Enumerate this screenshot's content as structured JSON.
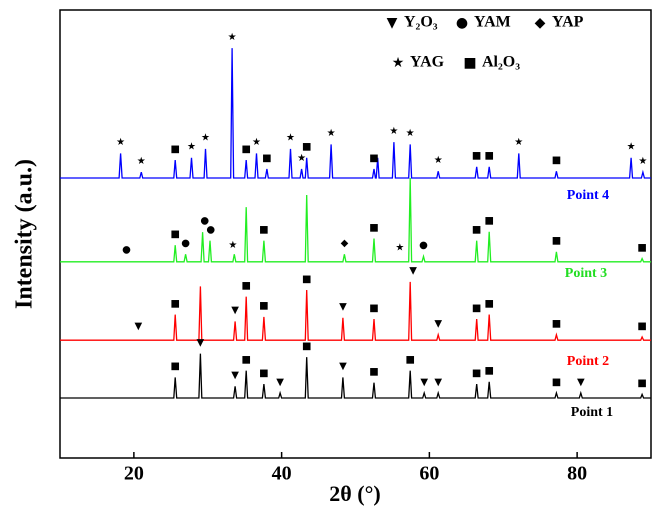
{
  "chart_data": {
    "type": "line",
    "xlabel": "2θ (°)",
    "ylabel": "Intensity (a.u.)",
    "xlim": [
      10,
      90
    ],
    "xticks": [
      20,
      40,
      60,
      80
    ],
    "ylim": [
      0,
      100
    ],
    "series": [
      {
        "name": "Point 1",
        "color": "#000000",
        "x": [
          10,
          25.4,
          25.6,
          25.8,
          28.8,
          29.0,
          29.2,
          33.5,
          33.7,
          33.9,
          35.0,
          35.2,
          35.4,
          37.4,
          37.6,
          37.8,
          39.6,
          39.8,
          40.0,
          43.2,
          43.4,
          43.6,
          48.1,
          48.3,
          48.5,
          52.3,
          52.5,
          52.7,
          57.2,
          57.4,
          57.6,
          59.1,
          59.3,
          59.5,
          61.0,
          61.2,
          61.4,
          66.2,
          66.4,
          66.6,
          67.9,
          68.1,
          68.3,
          77.0,
          77.2,
          77.4,
          80.3,
          80.5,
          80.7,
          88.6,
          88.8,
          89.0,
          90
        ],
        "values": [
          13.4,
          13.4,
          18,
          13.4,
          13.4,
          23.3,
          13.4,
          13.4,
          16,
          13.4,
          13.4,
          19.5,
          13.4,
          13.4,
          16.5,
          13.4,
          13.4,
          14.5,
          13.4,
          13.4,
          22.5,
          13.4,
          13.4,
          18,
          13.4,
          13.4,
          16.8,
          13.4,
          13.4,
          19.5,
          13.4,
          13.4,
          14.5,
          13.4,
          13.4,
          14.5,
          13.4,
          13.4,
          16.5,
          13.4,
          13.4,
          17,
          13.4,
          13.4,
          14.5,
          13.4,
          13.4,
          14.5,
          13.4,
          13.4,
          14.2,
          13.4,
          13.4
        ]
      },
      {
        "name": "Point 2",
        "color": "#ff0000",
        "x": [
          10,
          25.4,
          25.6,
          25.8,
          28.8,
          29.0,
          29.2,
          33.5,
          33.7,
          33.9,
          35.0,
          35.2,
          35.4,
          37.4,
          37.6,
          37.8,
          43.2,
          43.4,
          43.6,
          48.1,
          48.3,
          48.5,
          52.3,
          52.5,
          52.7,
          57.2,
          57.4,
          57.6,
          61.0,
          61.2,
          61.4,
          66.2,
          66.4,
          66.6,
          67.9,
          68.1,
          68.3,
          77.0,
          77.2,
          77.4,
          88.6,
          88.8,
          89.0,
          90
        ],
        "values": [
          26.3,
          26.3,
          32,
          26.3,
          26.3,
          38.3,
          26.3,
          26.3,
          30.5,
          26.3,
          26.3,
          36,
          26.3,
          26.3,
          31.5,
          26.3,
          26.3,
          37.5,
          26.3,
          26.3,
          31.3,
          26.3,
          26.3,
          31,
          26.3,
          26.3,
          39.3,
          26.3,
          26.3,
          27.5,
          26.3,
          26.3,
          31,
          26.3,
          26.3,
          32,
          26.3,
          26.3,
          27.5,
          26.3,
          26.3,
          27,
          26.3,
          26.3
        ]
      },
      {
        "name": "Point 3",
        "color": "#22ee22",
        "x": [
          10,
          25.4,
          25.6,
          25.8,
          26.8,
          27.0,
          27.2,
          29.1,
          29.3,
          29.5,
          30.1,
          30.3,
          30.5,
          33.4,
          33.6,
          33.8,
          35.0,
          35.2,
          35.4,
          37.4,
          37.6,
          37.8,
          43.2,
          43.4,
          43.6,
          48.3,
          48.5,
          48.7,
          52.3,
          52.5,
          52.7,
          57.2,
          57.4,
          57.6,
          59.0,
          59.2,
          59.4,
          66.2,
          66.4,
          66.6,
          67.9,
          68.1,
          68.3,
          77.0,
          77.2,
          77.4,
          88.6,
          88.8,
          89.0,
          90
        ],
        "values": [
          43.8,
          43.8,
          47.5,
          43.8,
          43.8,
          45.5,
          43.8,
          43.8,
          50.4,
          43.8,
          43.8,
          48.5,
          43.8,
          43.8,
          45.5,
          43.8,
          43.8,
          56,
          43.8,
          43.8,
          48.5,
          43.8,
          43.8,
          58.7,
          43.8,
          43.8,
          45.5,
          43.8,
          43.8,
          49,
          43.8,
          43.8,
          62.5,
          43.8,
          43.8,
          45,
          43.8,
          43.8,
          48.5,
          43.8,
          43.8,
          50.5,
          43.8,
          43.8,
          46,
          43.8,
          43.8,
          44.5,
          43.8,
          43.8
        ]
      },
      {
        "name": "Point 4",
        "color": "#0000ff",
        "x": [
          10,
          18.0,
          18.2,
          18.4,
          20.8,
          21.0,
          21.2,
          25.4,
          25.6,
          25.8,
          27.6,
          27.8,
          28.0,
          29.5,
          29.7,
          29.9,
          33.1,
          33.3,
          33.5,
          35.0,
          35.2,
          35.4,
          36.4,
          36.6,
          36.8,
          37.8,
          38.0,
          38.2,
          41.0,
          41.2,
          41.4,
          42.5,
          42.7,
          42.9,
          43.2,
          43.4,
          43.6,
          46.5,
          46.7,
          46.9,
          52.3,
          52.5,
          52.7,
          52.8,
          53.0,
          53.2,
          55.0,
          55.2,
          55.4,
          57.2,
          57.4,
          57.6,
          61.0,
          61.2,
          61.4,
          66.2,
          66.4,
          66.6,
          67.9,
          68.1,
          68.3,
          71.9,
          72.1,
          72.3,
          77.0,
          77.2,
          77.4,
          87.1,
          87.3,
          87.5,
          88.7,
          88.9,
          89.1,
          90
        ],
        "values": [
          62.5,
          62.5,
          68,
          62.5,
          62.5,
          63.8,
          62.5,
          62.5,
          66.5,
          62.5,
          62.5,
          67,
          62.5,
          62.5,
          69,
          62.5,
          62.5,
          91.5,
          62.5,
          62.5,
          66.5,
          62.5,
          62.5,
          68,
          62.5,
          62.5,
          64.5,
          62.5,
          62.5,
          69,
          62.5,
          62.5,
          64.5,
          62.5,
          62.5,
          67,
          62.5,
          62.5,
          70,
          62.5,
          62.5,
          64.5,
          62.5,
          62.5,
          67,
          62.5,
          62.5,
          70.5,
          62.5,
          62.5,
          70,
          62.5,
          62.5,
          64,
          62.5,
          62.5,
          65,
          62.5,
          62.5,
          65,
          62.5,
          62.5,
          68,
          62.5,
          62.5,
          64,
          62.5,
          62.5,
          67,
          62.5,
          62.5,
          63.8,
          62.5,
          62.5
        ]
      }
    ],
    "phase_legend": [
      {
        "symbol": "▼",
        "label": "Y₂O₃"
      },
      {
        "symbol": "●",
        "label": "YAM"
      },
      {
        "symbol": "◆",
        "label": "YAP"
      },
      {
        "symbol": "★",
        "label": "YAG"
      },
      {
        "symbol": "■",
        "label": "Al₂O₃"
      }
    ],
    "annotations": [
      {
        "text": "■",
        "x": 25.6,
        "y": 20.5
      },
      {
        "text": "▼",
        "x": 29,
        "y": 25.8
      },
      {
        "text": "▼",
        "x": 33.7,
        "y": 18.5
      },
      {
        "text": "■",
        "x": 35.2,
        "y": 22
      },
      {
        "text": "■",
        "x": 37.6,
        "y": 19
      },
      {
        "text": "▼",
        "x": 39.8,
        "y": 17
      },
      {
        "text": "■",
        "x": 43.4,
        "y": 25
      },
      {
        "text": "▼",
        "x": 48.3,
        "y": 20.5
      },
      {
        "text": "■",
        "x": 52.5,
        "y": 19.3
      },
      {
        "text": "■",
        "x": 57.4,
        "y": 22
      },
      {
        "text": "▼",
        "x": 59.3,
        "y": 17
      },
      {
        "text": "▼",
        "x": 61.2,
        "y": 17
      },
      {
        "text": "■",
        "x": 66.4,
        "y": 19
      },
      {
        "text": "■",
        "x": 68.1,
        "y": 19.5
      },
      {
        "text": "■",
        "x": 77.2,
        "y": 17
      },
      {
        "text": "▼",
        "x": 80.5,
        "y": 17
      },
      {
        "text": "■",
        "x": 88.8,
        "y": 16.7
      },
      {
        "text": "▼",
        "x": 20.6,
        "y": 29.5
      },
      {
        "text": "■",
        "x": 25.6,
        "y": 34.5
      },
      {
        "text": "▼",
        "x": 33.7,
        "y": 33
      },
      {
        "text": "■",
        "x": 35.2,
        "y": 38.5
      },
      {
        "text": "■",
        "x": 37.6,
        "y": 34
      },
      {
        "text": "■",
        "x": 43.4,
        "y": 40
      },
      {
        "text": "▼",
        "x": 48.3,
        "y": 33.8
      },
      {
        "text": "■",
        "x": 52.5,
        "y": 33.5
      },
      {
        "text": "▼",
        "x": 57.8,
        "y": 41.8
      },
      {
        "text": "▼",
        "x": 61.2,
        "y": 30
      },
      {
        "text": "■",
        "x": 66.4,
        "y": 33.5
      },
      {
        "text": "■",
        "x": 68.1,
        "y": 34.5
      },
      {
        "text": "■",
        "x": 77.2,
        "y": 30
      },
      {
        "text": "■",
        "x": 88.8,
        "y": 29.5
      },
      {
        "text": "●",
        "x": 19,
        "y": 46.5
      },
      {
        "text": "■",
        "x": 25.6,
        "y": 50
      },
      {
        "text": "●",
        "x": 27,
        "y": 48
      },
      {
        "text": "●",
        "x": 29.6,
        "y": 53
      },
      {
        "text": "●",
        "x": 30.4,
        "y": 51
      },
      {
        "text": "★",
        "x": 33.4,
        "y": 47.5
      },
      {
        "text": "■",
        "x": 37.6,
        "y": 51
      },
      {
        "text": "◆",
        "x": 48.5,
        "y": 48
      },
      {
        "text": "■",
        "x": 52.5,
        "y": 51.5
      },
      {
        "text": "★",
        "x": 56,
        "y": 47
      },
      {
        "text": "●",
        "x": 59.2,
        "y": 47.5
      },
      {
        "text": "■",
        "x": 66.4,
        "y": 51
      },
      {
        "text": "■",
        "x": 68.1,
        "y": 53
      },
      {
        "text": "■",
        "x": 77.2,
        "y": 48.5
      },
      {
        "text": "■",
        "x": 88.8,
        "y": 47
      },
      {
        "text": "★",
        "x": 18.2,
        "y": 70.5
      },
      {
        "text": "★",
        "x": 21,
        "y": 66.3
      },
      {
        "text": "■",
        "x": 25.6,
        "y": 69
      },
      {
        "text": "★",
        "x": 27.8,
        "y": 69.5
      },
      {
        "text": "★",
        "x": 29.7,
        "y": 71.5
      },
      {
        "text": "★",
        "x": 33.3,
        "y": 94
      },
      {
        "text": "■",
        "x": 35.2,
        "y": 69
      },
      {
        "text": "★",
        "x": 36.6,
        "y": 70.5
      },
      {
        "text": "■",
        "x": 38,
        "y": 67
      },
      {
        "text": "★",
        "x": 41.2,
        "y": 71.5
      },
      {
        "text": "★",
        "x": 42.7,
        "y": 67
      },
      {
        "text": "■",
        "x": 43.4,
        "y": 69.5
      },
      {
        "text": "★",
        "x": 46.7,
        "y": 72.5
      },
      {
        "text": "■",
        "x": 52.5,
        "y": 67
      },
      {
        "text": "★",
        "x": 55.2,
        "y": 73
      },
      {
        "text": "★",
        "x": 57.4,
        "y": 72.5
      },
      {
        "text": "★",
        "x": 61.2,
        "y": 66.5
      },
      {
        "text": "■",
        "x": 66.4,
        "y": 67.5
      },
      {
        "text": "■",
        "x": 68.1,
        "y": 67.5
      },
      {
        "text": "★",
        "x": 72.1,
        "y": 70.5
      },
      {
        "text": "■",
        "x": 77.2,
        "y": 66.5
      },
      {
        "text": "★",
        "x": 87.3,
        "y": 69.5
      },
      {
        "text": "★",
        "x": 88.9,
        "y": 66.3
      }
    ]
  }
}
